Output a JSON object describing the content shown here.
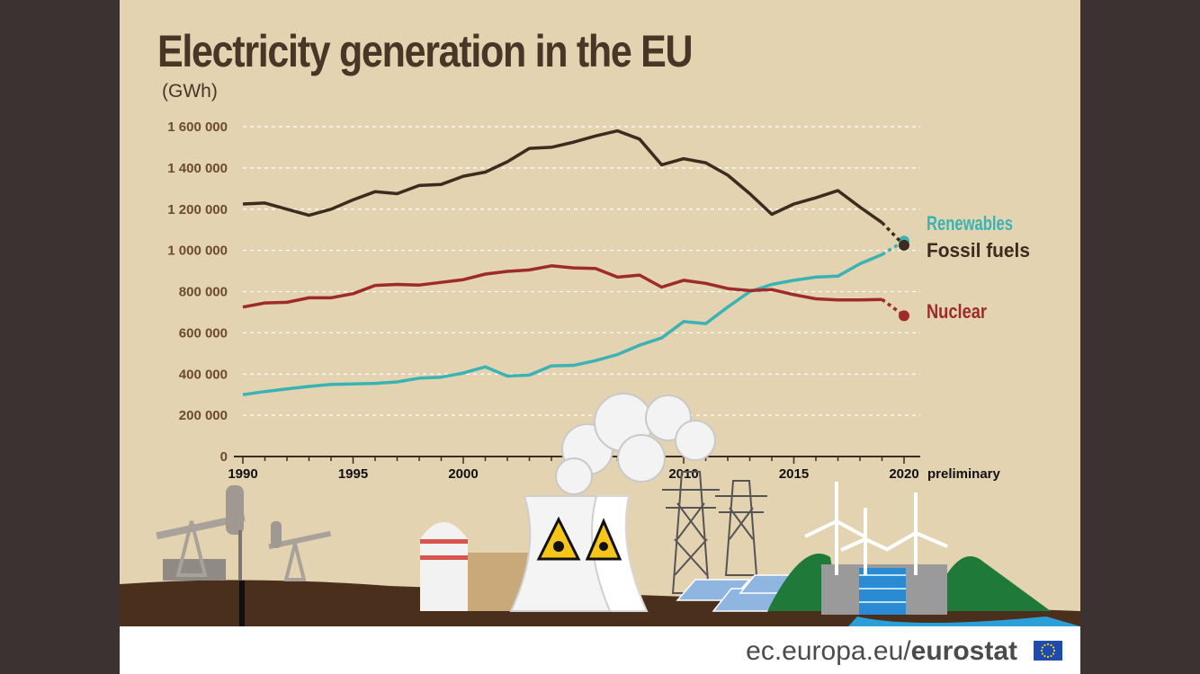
{
  "header": {
    "title": "Electricity generation in the EU",
    "unit": "(GWh)"
  },
  "footer": {
    "url_prefix": "ec.europa.eu/",
    "brand": "eurostat"
  },
  "chart_data": {
    "type": "line",
    "title": "Electricity generation in the EU",
    "ylabel": "(GWh)",
    "xlabel": "",
    "ylim": [
      0,
      1600000
    ],
    "xlim": [
      1990,
      2020
    ],
    "yticks": [
      0,
      200000,
      400000,
      600000,
      800000,
      1000000,
      1200000,
      1400000,
      1600000
    ],
    "ytick_labels": [
      "0",
      "200 000",
      "400 000",
      "600 000",
      "800 000",
      "1 000 000",
      "1 200 000",
      "1 400 000",
      "1 600 000"
    ],
    "xticks": [
      1990,
      1995,
      2000,
      2005,
      2010,
      2015,
      2020
    ],
    "xtick_labels": [
      "1990",
      "1995",
      "2000",
      "2005",
      "2010",
      "2015",
      "2020"
    ],
    "x_note": "preliminary",
    "grid": true,
    "x": [
      1990,
      1991,
      1992,
      1993,
      1994,
      1995,
      1996,
      1997,
      1998,
      1999,
      2000,
      2001,
      2002,
      2003,
      2004,
      2005,
      2006,
      2007,
      2008,
      2009,
      2010,
      2011,
      2012,
      2013,
      2014,
      2015,
      2016,
      2017,
      2018,
      2019,
      2020
    ],
    "series": [
      {
        "name": "Renewables",
        "color": "#3bb3b5",
        "values": [
          300000,
          315000,
          328000,
          340000,
          350000,
          352000,
          355000,
          362000,
          380000,
          385000,
          405000,
          435000,
          390000,
          395000,
          440000,
          442000,
          465000,
          495000,
          540000,
          575000,
          655000,
          645000,
          725000,
          800000,
          835000,
          855000,
          870000,
          875000,
          935000,
          980000,
          1045000
        ],
        "preliminary_from": 2019
      },
      {
        "name": "Fossil fuels",
        "color": "#3d2b1f",
        "values": [
          1225000,
          1230000,
          1200000,
          1170000,
          1200000,
          1245000,
          1285000,
          1275000,
          1315000,
          1320000,
          1360000,
          1380000,
          1430000,
          1495000,
          1500000,
          1525000,
          1555000,
          1580000,
          1540000,
          1415000,
          1445000,
          1425000,
          1365000,
          1275000,
          1175000,
          1225000,
          1255000,
          1290000,
          1210000,
          1135000,
          1025000
        ],
        "preliminary_from": 2019
      },
      {
        "name": "Nuclear",
        "color": "#9e2a2a",
        "values": [
          725000,
          745000,
          748000,
          770000,
          770000,
          790000,
          830000,
          835000,
          832000,
          845000,
          858000,
          885000,
          898000,
          905000,
          925000,
          915000,
          912000,
          870000,
          880000,
          822000,
          855000,
          840000,
          815000,
          805000,
          810000,
          785000,
          765000,
          760000,
          760000,
          762000,
          683000
        ],
        "preliminary_from": 2019
      }
    ],
    "legend_placement": "right, at line ends"
  }
}
